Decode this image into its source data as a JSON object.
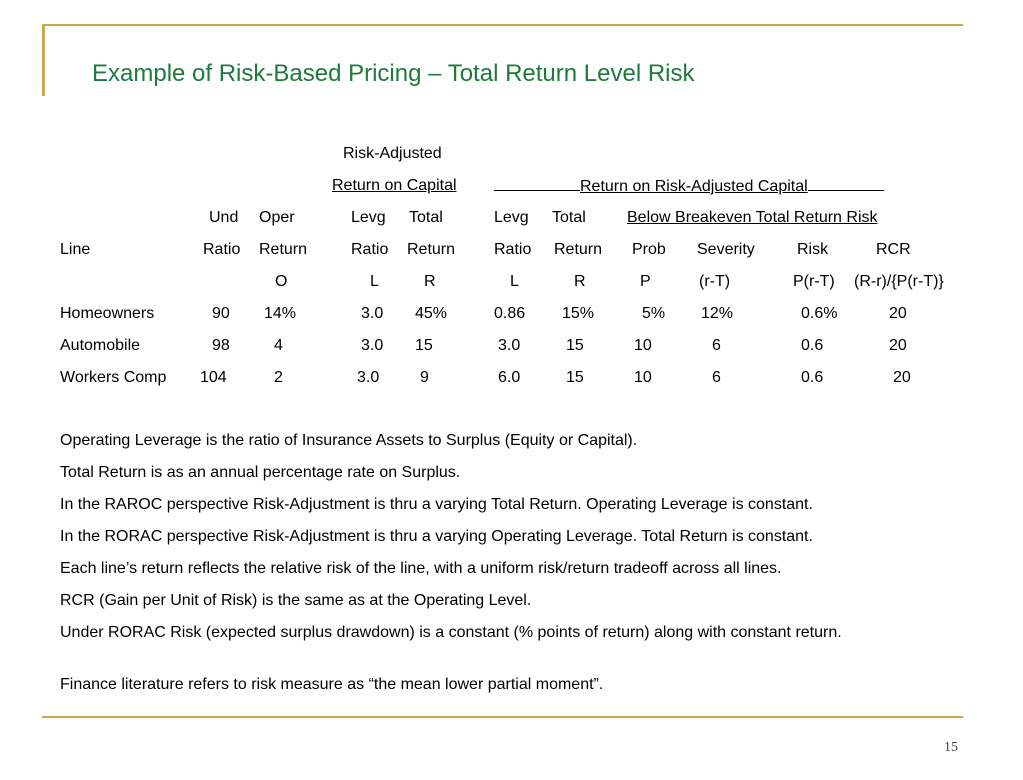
{
  "title": "Example of Risk-Based Pricing – Total Return Level Risk",
  "table": {
    "header_row1": {
      "risk_adjusted": "Risk-Adjusted"
    },
    "header_row2": {
      "return_on_capital": "Return on Capital",
      "return_on_risk_adjusted_capital": "__________Return on Risk-Adjusted Capital________"
    },
    "header_row3": {
      "und": "Und",
      "oper": "Oper",
      "levg1": "Levg",
      "total1": "Total",
      "levg2": "Levg",
      "total2": "Total",
      "below_breakeven": "Below Breakeven Total Return Risk"
    },
    "header_row4": {
      "line": "Line",
      "ratio1": "Ratio",
      "return1": "Return",
      "ratio2": "Ratio",
      "return2": "Return",
      "ratio3": "Ratio",
      "return3": "Return",
      "prob": "Prob",
      "severity": "Severity",
      "risk": "Risk",
      "rcr": "RCR"
    },
    "header_row5": {
      "o": "O",
      "l1": "L",
      "r1": "R",
      "l2": "L",
      "r2": "R",
      "p": "P",
      "rt": "(r-T)",
      "prt": "P(r-T)",
      "rcr_formula": "(R-r)/{P(r-T)}"
    },
    "rows": [
      {
        "line": "Homeowners",
        "und_ratio": "90",
        "oper_return": "14%",
        "levg_ratio": "3.0",
        "total_return": "45%",
        "levg_ratio2": "0.86",
        "total_return2": "15%",
        "prob": "5%",
        "severity": "12%",
        "risk": "0.6%",
        "rcr": "20"
      },
      {
        "line": "Automobile",
        "und_ratio": "98",
        "oper_return": "4",
        "levg_ratio": "3.0",
        "total_return": "15",
        "levg_ratio2": "3.0",
        "total_return2": "15",
        "prob": "10",
        "severity": "6",
        "risk": "0.6",
        "rcr": "20"
      },
      {
        "line": "Workers Comp",
        "und_ratio": "104",
        "oper_return": "2",
        "levg_ratio": "3.0",
        "total_return": "9",
        "levg_ratio2": "6.0",
        "total_return2": "15",
        "prob": "10",
        "severity": "6",
        "risk": "0.6",
        "rcr": "20"
      }
    ]
  },
  "notes": [
    "Operating Leverage is the ratio of Insurance Assets to Surplus (Equity or Capital).",
    "Total Return is as an annual percentage rate on Surplus.",
    "In the RAROC perspective Risk-Adjustment is thru a varying Total Return.  Operating Leverage is constant.",
    "In the RORAC perspective Risk-Adjustment is thru a varying Operating Leverage.  Total Return is constant.",
    "Each line’s return reflects the relative risk of the line, with a uniform risk/return tradeoff across all lines.",
    "RCR (Gain per Unit of Risk) is the same as at the Operating Level.",
    "Under RORAC Risk (expected surplus drawdown) is a constant (% points of return) along with constant return.",
    "Finance literature refers to risk measure as “the mean lower partial moment”."
  ],
  "page_number": "15"
}
